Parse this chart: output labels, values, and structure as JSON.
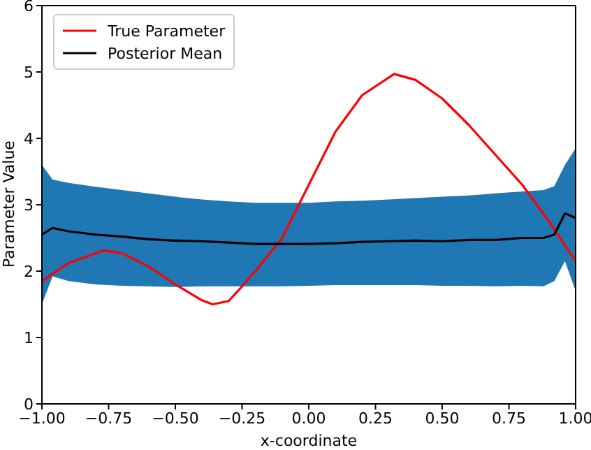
{
  "chart_data": {
    "type": "line",
    "xlabel": "x-coordinate",
    "ylabel": "Parameter Value",
    "xlim": [
      -1,
      1
    ],
    "xticks": [
      {
        "value": -1,
        "label": "−1.00"
      },
      {
        "value": -0.75,
        "label": "−0.75"
      },
      {
        "value": -0.5,
        "label": "−0.50"
      },
      {
        "value": -0.25,
        "label": "−0.25"
      },
      {
        "value": 0,
        "label": "0.00"
      },
      {
        "value": 0.25,
        "label": "0.25"
      },
      {
        "value": 0.5,
        "label": "0.50"
      },
      {
        "value": 0.75,
        "label": "0.75"
      },
      {
        "value": 1,
        "label": "1.00"
      }
    ],
    "ylim": [
      0,
      6
    ],
    "yticks": [
      0,
      1,
      2,
      3,
      4,
      5,
      6
    ],
    "grid": false,
    "legend": "top left",
    "marker": "none",
    "line_style": "solid",
    "series": [
      {
        "name": "True Parameter",
        "color": "#ff0000",
        "x": [
          -1,
          -0.9,
          -0.77,
          -0.7,
          -0.6,
          -0.5,
          -0.4,
          -0.36,
          -0.3,
          -0.25,
          -0.2,
          -0.1,
          0,
          0.1,
          0.2,
          0.32,
          0.4,
          0.5,
          0.6,
          0.7,
          0.8,
          0.9,
          1.0
        ],
        "values": [
          1.85,
          2.12,
          2.31,
          2.27,
          2.07,
          1.8,
          1.56,
          1.5,
          1.55,
          1.77,
          2.0,
          2.5,
          3.3,
          4.1,
          4.65,
          4.97,
          4.88,
          4.6,
          4.2,
          3.75,
          3.3,
          2.75,
          2.15
        ]
      },
      {
        "name": "Posterior Mean",
        "color": "#000000",
        "x": [
          -1,
          -0.96,
          -0.9,
          -0.8,
          -0.7,
          -0.6,
          -0.5,
          -0.4,
          -0.3,
          -0.2,
          -0.1,
          0,
          0.1,
          0.2,
          0.3,
          0.4,
          0.5,
          0.6,
          0.7,
          0.8,
          0.88,
          0.92,
          0.96,
          1.0
        ],
        "values": [
          2.55,
          2.65,
          2.6,
          2.55,
          2.52,
          2.48,
          2.46,
          2.45,
          2.43,
          2.41,
          2.41,
          2.41,
          2.42,
          2.44,
          2.45,
          2.46,
          2.45,
          2.47,
          2.47,
          2.5,
          2.5,
          2.55,
          2.87,
          2.8
        ],
        "upper": [
          3.6,
          3.38,
          3.33,
          3.27,
          3.22,
          3.17,
          3.12,
          3.08,
          3.05,
          3.03,
          3.03,
          3.03,
          3.05,
          3.06,
          3.08,
          3.1,
          3.12,
          3.14,
          3.17,
          3.2,
          3.22,
          3.28,
          3.6,
          3.85
        ],
        "lower": [
          1.5,
          1.92,
          1.85,
          1.8,
          1.78,
          1.77,
          1.76,
          1.77,
          1.77,
          1.77,
          1.77,
          1.78,
          1.79,
          1.79,
          1.79,
          1.79,
          1.78,
          1.78,
          1.77,
          1.78,
          1.77,
          1.85,
          2.15,
          1.7
        ]
      }
    ]
  }
}
